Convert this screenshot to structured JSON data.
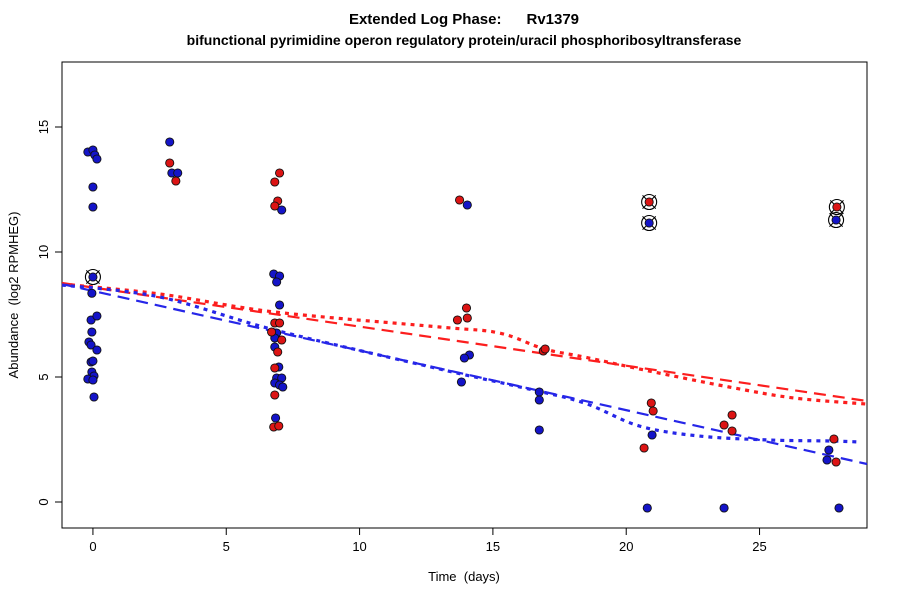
{
  "header": {
    "title": "Extended Log Phase:      Rv1379",
    "subtitle": "bifunctional pyrimidine operon regulatory protein/uracil phosphoribosyltransferase"
  },
  "chart_data": {
    "type": "scatter",
    "title": "Extended Log Phase:      Rv1379",
    "subtitle": "bifunctional pyrimidine operon regulatory protein/uracil phosphoribosyltransferase",
    "xlabel": "Time  (days)",
    "ylabel": "Abundance  (log2 RPMHEG)",
    "xlim": [
      -1.16,
      29.03
    ],
    "ylim": [
      -1.04,
      17.6
    ],
    "xticks": [
      0,
      5,
      10,
      15,
      20,
      25
    ],
    "yticks": [
      0,
      5,
      10,
      15
    ],
    "grid": false,
    "legend": "none",
    "colors": {
      "blue_point": "#1414c8",
      "red_point": "#dc1414",
      "blue_line": "#2626e8",
      "red_line": "#fc1e1e",
      "point_edge": "#101010",
      "axis": "#000000"
    },
    "series": [
      {
        "name": "blue-samples",
        "marker": "dot",
        "color": "#1414c8",
        "points": [
          [
            -0.19,
            14.0
          ],
          [
            0,
            14.08
          ],
          [
            0.07,
            13.88
          ],
          [
            0.15,
            13.72
          ],
          [
            0,
            12.6
          ],
          [
            0,
            11.8
          ],
          [
            -0.04,
            8.35
          ],
          [
            -0.07,
            7.28
          ],
          [
            0.15,
            7.44
          ],
          [
            -0.04,
            6.8
          ],
          [
            -0.15,
            6.4
          ],
          [
            -0.07,
            6.28
          ],
          [
            0.15,
            6.08
          ],
          [
            -0.07,
            5.6
          ],
          [
            0,
            5.64
          ],
          [
            -0.04,
            5.2
          ],
          [
            0.04,
            5.04
          ],
          [
            -0.19,
            4.92
          ],
          [
            0,
            4.88
          ],
          [
            0.04,
            4.2
          ],
          [
            2.88,
            14.4
          ],
          [
            2.96,
            13.16
          ],
          [
            3.18,
            13.16
          ],
          [
            7.08,
            11.68
          ],
          [
            6.78,
            9.12
          ],
          [
            7.0,
            9.04
          ],
          [
            6.89,
            8.8
          ],
          [
            7.0,
            7.88
          ],
          [
            6.89,
            6.76
          ],
          [
            6.82,
            6.56
          ],
          [
            6.82,
            6.2
          ],
          [
            6.97,
            5.4
          ],
          [
            6.89,
            4.96
          ],
          [
            7.08,
            4.96
          ],
          [
            6.82,
            4.76
          ],
          [
            7.0,
            4.68
          ],
          [
            7.12,
            4.6
          ],
          [
            6.85,
            3.36
          ],
          [
            14.04,
            11.88
          ],
          [
            14.12,
            5.88
          ],
          [
            13.93,
            5.76
          ],
          [
            13.82,
            4.8
          ],
          [
            16.74,
            4.4
          ],
          [
            16.74,
            4.08
          ],
          [
            16.74,
            2.88
          ],
          [
            20.97,
            2.68
          ],
          [
            20.79,
            -0.24
          ],
          [
            23.67,
            -0.24
          ],
          [
            27.6,
            2.08
          ],
          [
            27.53,
            1.68
          ],
          [
            27.98,
            -0.24
          ]
        ]
      },
      {
        "name": "red-samples",
        "marker": "dot",
        "color": "#dc1414",
        "points": [
          [
            2.88,
            13.56
          ],
          [
            3.11,
            12.84
          ],
          [
            7.0,
            13.16
          ],
          [
            6.82,
            12.8
          ],
          [
            6.93,
            12.04
          ],
          [
            6.82,
            11.84
          ],
          [
            6.82,
            7.16
          ],
          [
            7.0,
            7.16
          ],
          [
            6.7,
            6.8
          ],
          [
            7.08,
            6.48
          ],
          [
            6.93,
            6.0
          ],
          [
            6.82,
            5.36
          ],
          [
            6.82,
            4.28
          ],
          [
            6.78,
            3.0
          ],
          [
            6.97,
            3.04
          ],
          [
            13.75,
            12.08
          ],
          [
            14.01,
            7.76
          ],
          [
            13.67,
            7.28
          ],
          [
            14.04,
            7.36
          ],
          [
            16.89,
            6.04
          ],
          [
            16.96,
            6.12
          ],
          [
            20.94,
            3.96
          ],
          [
            21.01,
            3.64
          ],
          [
            20.67,
            2.16
          ],
          [
            23.97,
            3.48
          ],
          [
            23.67,
            3.08
          ],
          [
            23.97,
            2.84
          ],
          [
            27.79,
            2.52
          ],
          [
            27.87,
            1.6
          ]
        ]
      },
      {
        "name": "blue-flagged-samples",
        "marker": "circled-dot",
        "color": "#1414c8",
        "points": [
          [
            0,
            9.0
          ],
          [
            20.86,
            11.16
          ],
          [
            27.87,
            11.28
          ]
        ]
      },
      {
        "name": "red-flagged-samples",
        "marker": "circled-dot",
        "color": "#dc1414",
        "points": [
          [
            20.86,
            12.0
          ],
          [
            27.9,
            11.8
          ]
        ]
      }
    ],
    "trend_lines": [
      {
        "name": "red-linear-fit",
        "color": "#fc1e1e",
        "dash": "dashed",
        "width": 2.2,
        "points": [
          [
            -1.16,
            8.76
          ],
          [
            29.03,
            4.04
          ]
        ]
      },
      {
        "name": "blue-linear-fit",
        "color": "#2626e8",
        "dash": "dashed",
        "width": 2.2,
        "points": [
          [
            -1.16,
            8.72
          ],
          [
            29.03,
            1.52
          ]
        ]
      },
      {
        "name": "red-smooth-fit",
        "color": "#fc1e1e",
        "dash": "dotted",
        "width": 3.2,
        "points": [
          [
            -1.16,
            8.72
          ],
          [
            2.51,
            8.32
          ],
          [
            6.82,
            7.6
          ],
          [
            13.0,
            7.0
          ],
          [
            15.24,
            6.76
          ],
          [
            16.93,
            6.12
          ],
          [
            18.43,
            5.8
          ],
          [
            20.86,
            5.24
          ],
          [
            23.86,
            4.6
          ],
          [
            26.29,
            4.16
          ],
          [
            28.99,
            3.92
          ]
        ]
      },
      {
        "name": "blue-smooth-fit",
        "color": "#2626e8",
        "dash": "dotted",
        "width": 3.2,
        "points": [
          [
            -1.16,
            8.68
          ],
          [
            2.51,
            8.2
          ],
          [
            6.82,
            6.88
          ],
          [
            13.0,
            5.32
          ],
          [
            16.18,
            4.56
          ],
          [
            18.43,
            3.96
          ],
          [
            20.49,
            3.04
          ],
          [
            22.73,
            2.64
          ],
          [
            25.36,
            2.48
          ],
          [
            27.68,
            2.44
          ],
          [
            28.73,
            2.4
          ]
        ]
      }
    ]
  }
}
